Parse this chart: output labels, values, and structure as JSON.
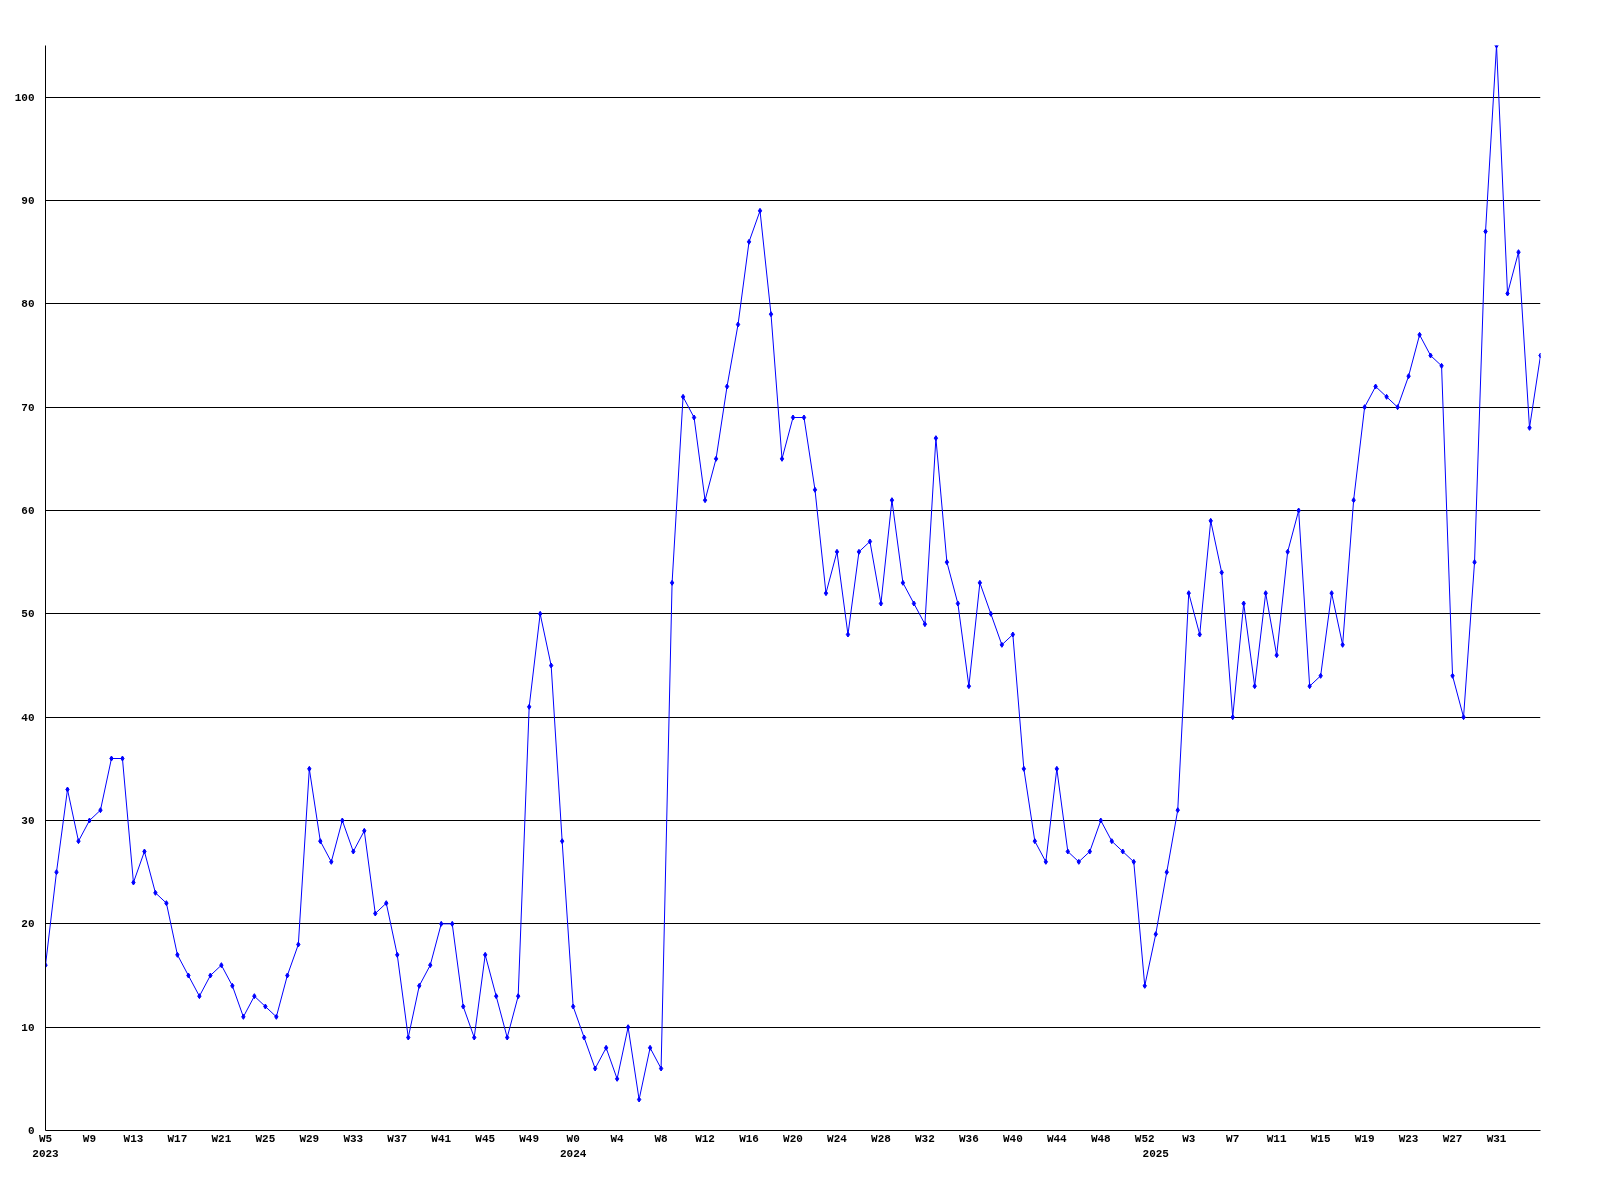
{
  "chart_data": {
    "type": "line",
    "categories": [
      "W5\n2023",
      null,
      null,
      null,
      "W9",
      null,
      null,
      null,
      "W13",
      null,
      null,
      null,
      "W17",
      null,
      null,
      null,
      "W21",
      null,
      null,
      null,
      "W25",
      null,
      null,
      null,
      "W29",
      null,
      null,
      null,
      "W33",
      null,
      null,
      null,
      "W37",
      null,
      null,
      null,
      "W41",
      null,
      null,
      null,
      "W45",
      null,
      null,
      null,
      "W49",
      null,
      null,
      null,
      "W0\n2024",
      null,
      null,
      null,
      "W4",
      null,
      null,
      null,
      "W8",
      null,
      null,
      null,
      "W12",
      null,
      null,
      null,
      "W16",
      null,
      null,
      null,
      "W20",
      null,
      null,
      null,
      "W24",
      null,
      null,
      null,
      "W28",
      null,
      null,
      null,
      "W32",
      null,
      null,
      null,
      "W36",
      null,
      null,
      null,
      "W40",
      null,
      null,
      null,
      "W44",
      null,
      null,
      null,
      "W48",
      null,
      null,
      null,
      "W52",
      "\n2025",
      null,
      null,
      "W3",
      null,
      null,
      null,
      "W7",
      null,
      null,
      null,
      "W11",
      null,
      null,
      null,
      "W15",
      null,
      null,
      null,
      "W19",
      null,
      null,
      null,
      "W23",
      null,
      null,
      null,
      "W27",
      null,
      null,
      null,
      "W31",
      null,
      null,
      null,
      null
    ],
    "series": [
      {
        "color": "#0000ff",
        "values": [
          16,
          25,
          33,
          28,
          30,
          31,
          36,
          36,
          24,
          27,
          23,
          22,
          17,
          15,
          13,
          15,
          16,
          14,
          11,
          13,
          12,
          11,
          15,
          18,
          35,
          28,
          26,
          30,
          27,
          29,
          21,
          22,
          17,
          9,
          14,
          16,
          20,
          20,
          12,
          9,
          17,
          13,
          9,
          13,
          41,
          50,
          45,
          28,
          12,
          9,
          6,
          8,
          5,
          10,
          3,
          8,
          6,
          53,
          71,
          69,
          61,
          65,
          72,
          78,
          86,
          89,
          79,
          65,
          69,
          69,
          62,
          52,
          56,
          48,
          56,
          57,
          51,
          61,
          53,
          51,
          49,
          67,
          55,
          51,
          43,
          53,
          50,
          47,
          48,
          35,
          28,
          26,
          35,
          27,
          26,
          27,
          30,
          28,
          27,
          26,
          14,
          19,
          25,
          31,
          52,
          48,
          59,
          54,
          40,
          51,
          43,
          52,
          46,
          56,
          60,
          43,
          44,
          52,
          47,
          61,
          70,
          72,
          71,
          70,
          73,
          77,
          75,
          74,
          44,
          40,
          55,
          87,
          105,
          81,
          85,
          68,
          75
        ]
      }
    ],
    "ylim": [
      0,
      105
    ],
    "yticks": [
      0,
      10,
      20,
      30,
      40,
      50,
      60,
      70,
      80,
      90,
      100
    ],
    "grid": "y",
    "marker": "diamond",
    "line_style": "solid"
  }
}
